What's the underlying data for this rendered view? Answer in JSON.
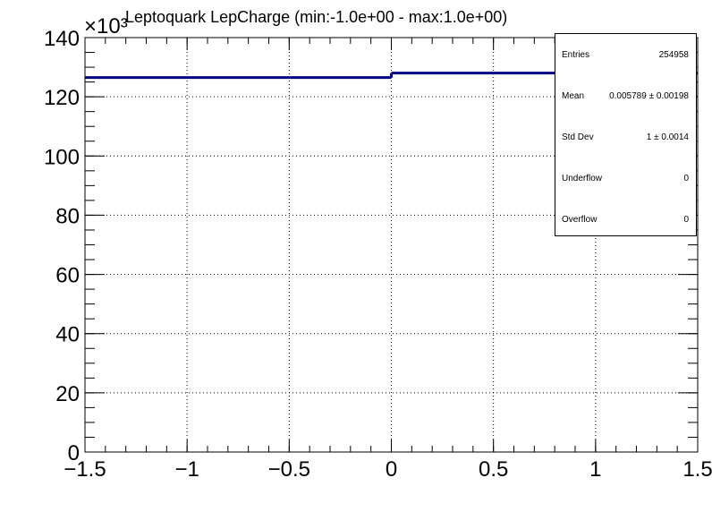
{
  "title": "Leptoquark LepCharge (min:-1.0e+00 - max:1.0e+00)",
  "stats": {
    "rows": [
      {
        "label": "Entries",
        "value": "254958"
      },
      {
        "label": "Mean",
        "value": "0.005789 ± 0.00198"
      },
      {
        "label": "Std Dev",
        "value": "1 ± 0.0014"
      },
      {
        "label": "Underflow",
        "value": "0"
      },
      {
        "label": "Overflow",
        "value": "0"
      }
    ]
  },
  "chart_data": {
    "type": "histogram",
    "title": "Leptoquark LepCharge (min:-1.0e+00 - max:1.0e+00)",
    "xlabel": "",
    "ylabel": "",
    "y_multiplier_label": "×10³",
    "xlim": [
      -1.5,
      1.5
    ],
    "ylim": [
      0,
      140
    ],
    "xticks": [
      -1.5,
      -1,
      -0.5,
      0,
      0.5,
      1,
      1.5
    ],
    "xtick_labels": [
      "−1.5",
      "−1",
      "−0.5",
      "0",
      "0.5",
      "1",
      "1.5"
    ],
    "yticks": [
      0,
      20,
      40,
      60,
      80,
      100,
      120,
      140
    ],
    "ytick_labels": [
      "0",
      "20",
      "40",
      "60",
      "80",
      "100",
      "120",
      "140"
    ],
    "bins": [
      {
        "x0": -1.5,
        "x1": 0,
        "y": 126.5
      },
      {
        "x0": 0,
        "x1": 1.5,
        "y": 128
      }
    ],
    "grid": true,
    "line_color": "#000080"
  }
}
